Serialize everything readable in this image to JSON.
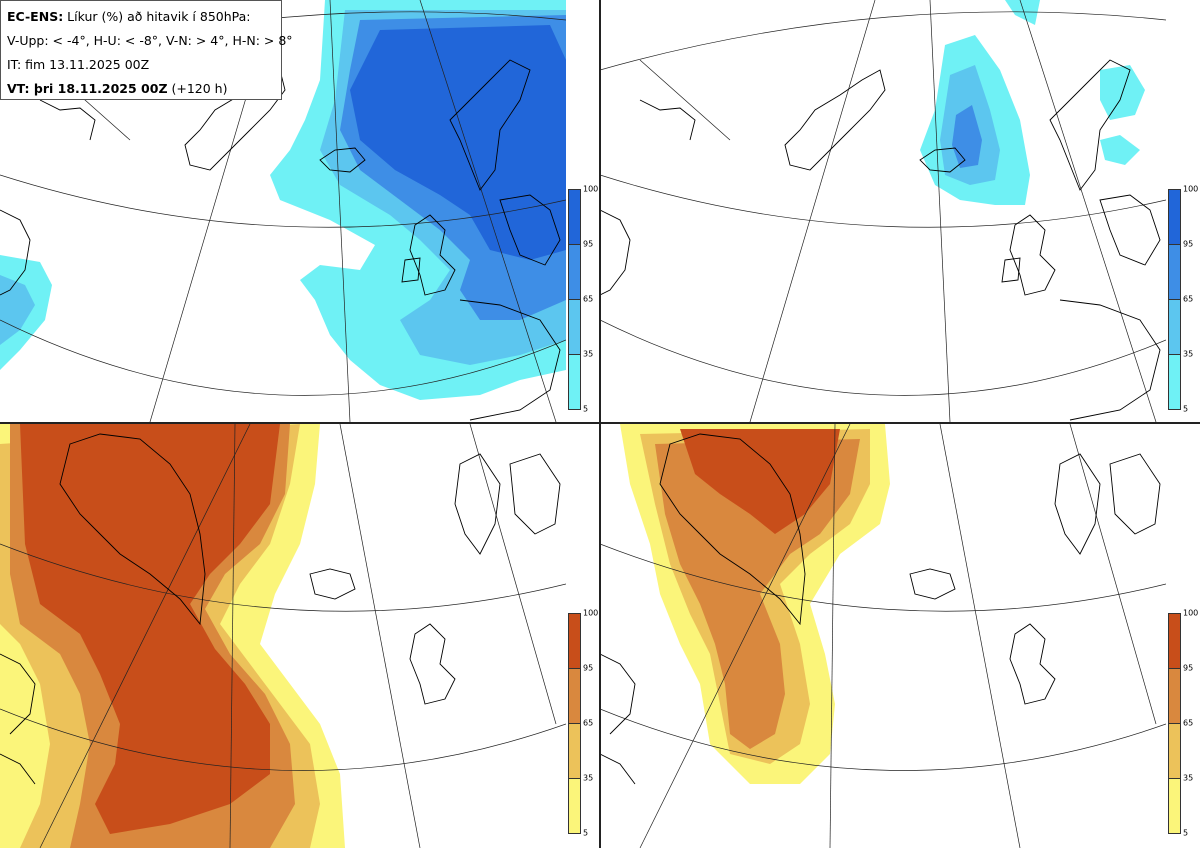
{
  "header": {
    "line1_bold": "EC-ENS:",
    "line1_rest": " Líkur (%) að hitavik í 850hPa:",
    "line2": "V-Upp: < -4°, H-U: < -8°, V-N: > 4°, H-N: > 8°",
    "line3": "IT: fim 13.11.2025 00Z",
    "line4_bold": "VT: þri 18.11.2025 00Z",
    "line4_rest": " (+120 h)"
  },
  "colorbar": {
    "ticks": [
      "100",
      "95",
      "65",
      "35",
      "5"
    ],
    "cold_colors": [
      "#2166d9",
      "#3e8ee6",
      "#5cc6ef",
      "#6ff1f5"
    ],
    "warm_colors": [
      "#c84e1a",
      "#d9883e",
      "#ecc25a",
      "#fbf57a"
    ]
  },
  "panels": [
    {
      "name": "V-Upp",
      "scheme": "cold"
    },
    {
      "name": "H-U",
      "scheme": "cold"
    },
    {
      "name": "V-N",
      "scheme": "warm"
    },
    {
      "name": "H-N",
      "scheme": "warm"
    }
  ]
}
